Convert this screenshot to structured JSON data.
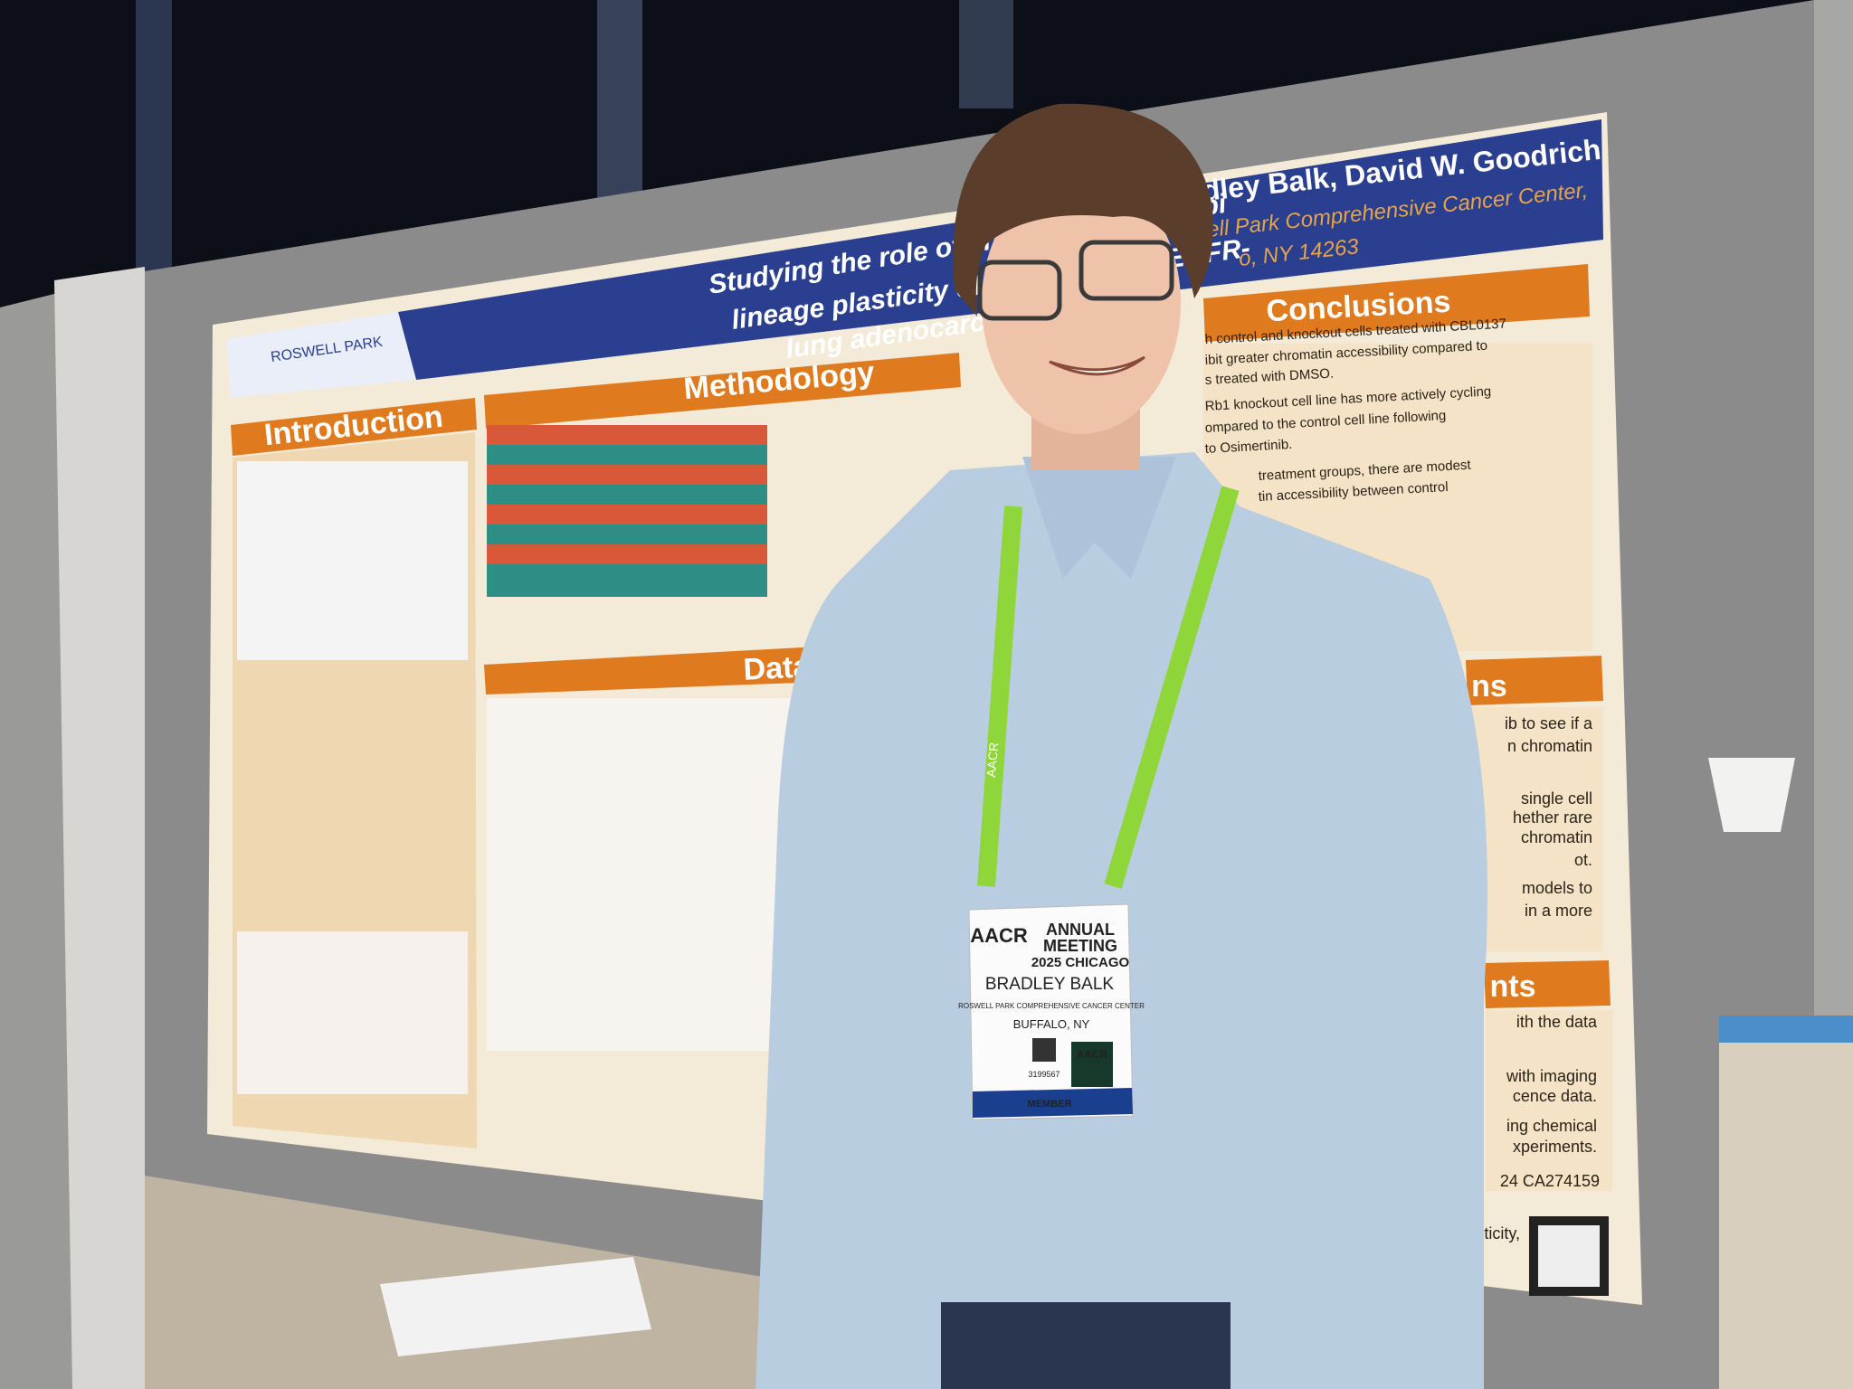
{
  "poster": {
    "title_lines": [
      "Studying the role of chromatin accessibi",
      "lineage plasticity of Rb1-deficient EGFR-",
      "lung adenocarcinoma"
    ],
    "authors": "dley Balk, David W. Goodrich",
    "affiliation_lines": [
      "ell Park Comprehensive Cancer Center,",
      "o, NY 14263"
    ],
    "sections": {
      "introduction": "Introduction",
      "methodology": "Methodology",
      "data": "Data",
      "conclusions": "Conclusions",
      "partial_a": "ns",
      "partial_b": "nts"
    },
    "conclusion_lines": [
      "h control and knockout cells treated with CBL0137",
      "ibit greater chromatin accessibility compared to",
      "s treated with DMSO.",
      "Rb1 knockout cell line has more actively cycling",
      "ompared to the control cell line following",
      "to Osimertinib.",
      "treatment groups, there are modest",
      "tin accessibility between control"
    ],
    "right_lines": [
      "ib to see if a",
      "n chromatin",
      "single cell",
      "hether rare",
      "chromatin",
      "ot.",
      "models to",
      "in a more",
      "ith the data",
      "with imaging",
      "cence data.",
      "ing chemical",
      "xperiments.",
      "24 CA274159",
      "ticity,"
    ]
  },
  "badge": {
    "logo": "AACR",
    "event_lines": [
      "ANNUAL",
      "MEETING",
      "2025 CHICAGO"
    ],
    "name": "BRADLEY BALK",
    "institution": "ROSWELL PARK COMPREHENSIVE CANCER CENTER",
    "city": "BUFFALO, NY",
    "number": "3199567",
    "role": "MEMBER",
    "small_logo": "AACR"
  },
  "lanyard": "AACR"
}
